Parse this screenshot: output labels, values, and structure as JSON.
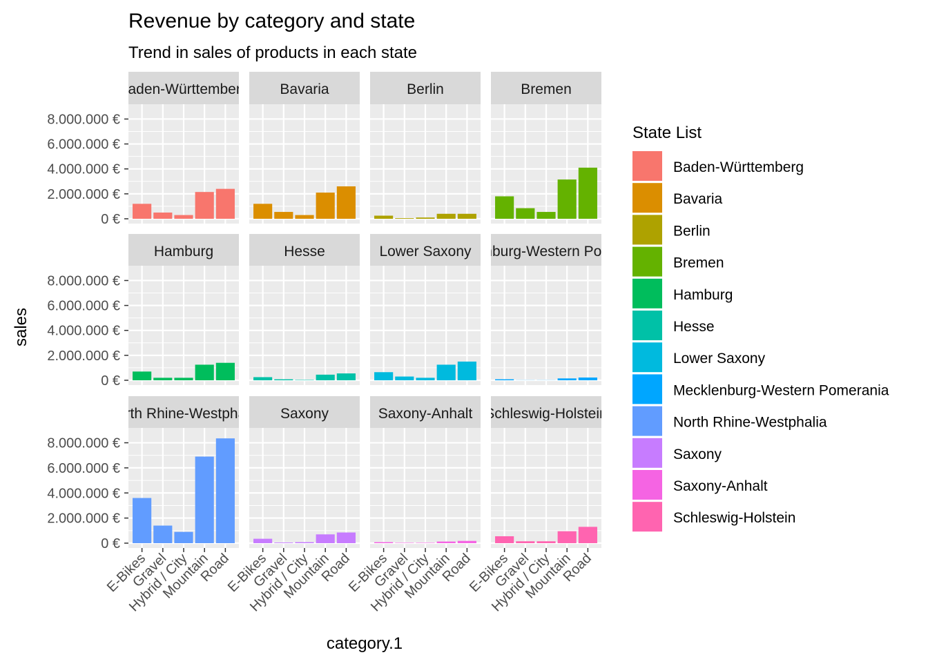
{
  "chart_data": {
    "type": "bar",
    "title": "Revenue by category and state",
    "subtitle": "Trend in sales of products in each state",
    "xlabel": "category.1",
    "ylabel": "sales",
    "ylim": [
      0,
      8800000
    ],
    "y_ticks": [
      0,
      2000000,
      4000000,
      6000000,
      8000000
    ],
    "y_tick_labels": [
      "0 €",
      "2.000.000 €",
      "4.000.000 €",
      "6.000.000 €",
      "8.000.000 €"
    ],
    "categories": [
      "E-Bikes",
      "Gravel",
      "Hybrid / City",
      "Mountain",
      "Road"
    ],
    "grid": true,
    "facet_layout": "wrap 4 columns",
    "legend": {
      "title": "State List",
      "position": "right"
    },
    "panels": [
      {
        "strip": "Baden-Württemberg",
        "color": "#F8766D",
        "values": [
          1200000,
          500000,
          300000,
          2150000,
          2400000
        ]
      },
      {
        "strip": "Bavaria",
        "color": "#DB8E00",
        "values": [
          1200000,
          550000,
          300000,
          2100000,
          2600000
        ]
      },
      {
        "strip": "Berlin",
        "color": "#AEA200",
        "values": [
          250000,
          50000,
          100000,
          400000,
          400000
        ]
      },
      {
        "strip": "Bremen",
        "color": "#64B200",
        "values": [
          1800000,
          850000,
          550000,
          3150000,
          4100000
        ]
      },
      {
        "strip": "Hamburg",
        "color": "#00BD5C",
        "values": [
          700000,
          200000,
          200000,
          1250000,
          1400000
        ]
      },
      {
        "strip": "Hesse",
        "color": "#00C1A7",
        "values": [
          250000,
          80000,
          30000,
          450000,
          550000
        ]
      },
      {
        "strip": "Lower Saxony",
        "color": "#00BADE",
        "values": [
          650000,
          300000,
          200000,
          1250000,
          1500000
        ]
      },
      {
        "strip": "Mecklenburg-Western Pomerania",
        "color": "#00A6FF",
        "values": [
          80000,
          10000,
          10000,
          150000,
          220000
        ]
      },
      {
        "strip": "North Rhine-Westphalia",
        "color": "#619CFF",
        "values": [
          3600000,
          1400000,
          900000,
          6900000,
          8350000
        ]
      },
      {
        "strip": "Saxony",
        "color": "#C77CFF",
        "values": [
          350000,
          50000,
          80000,
          700000,
          850000
        ]
      },
      {
        "strip": "Saxony-Anhalt",
        "color": "#F564E3",
        "values": [
          80000,
          30000,
          30000,
          130000,
          180000
        ]
      },
      {
        "strip": "Schleswig-Holstein",
        "color": "#FF64B0",
        "values": [
          550000,
          150000,
          150000,
          950000,
          1300000
        ]
      }
    ]
  }
}
